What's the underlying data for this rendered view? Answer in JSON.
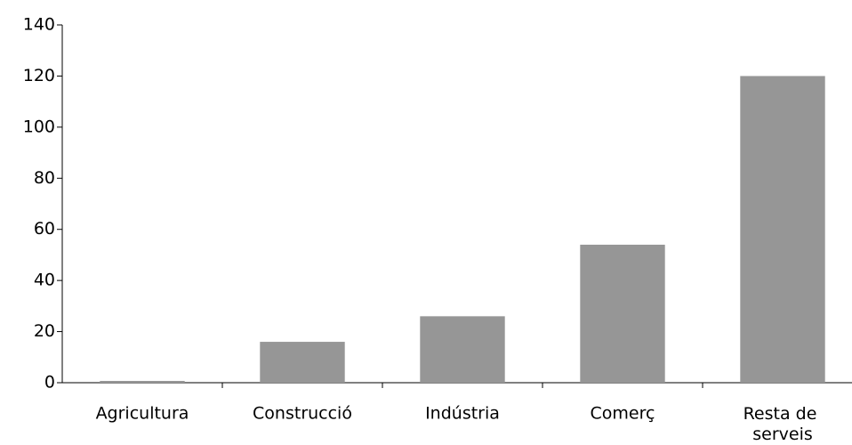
{
  "chart_data": {
    "type": "bar",
    "categories": [
      "Agricultura",
      "Construcció",
      "Indústria",
      "Comerç",
      "Resta de serveis"
    ],
    "values": [
      0.7,
      16,
      26,
      54,
      120
    ],
    "color": "#969696",
    "ylim": [
      0,
      140
    ],
    "yticks": [
      0,
      20,
      40,
      60,
      80,
      100,
      120,
      140
    ],
    "grid": false
  }
}
